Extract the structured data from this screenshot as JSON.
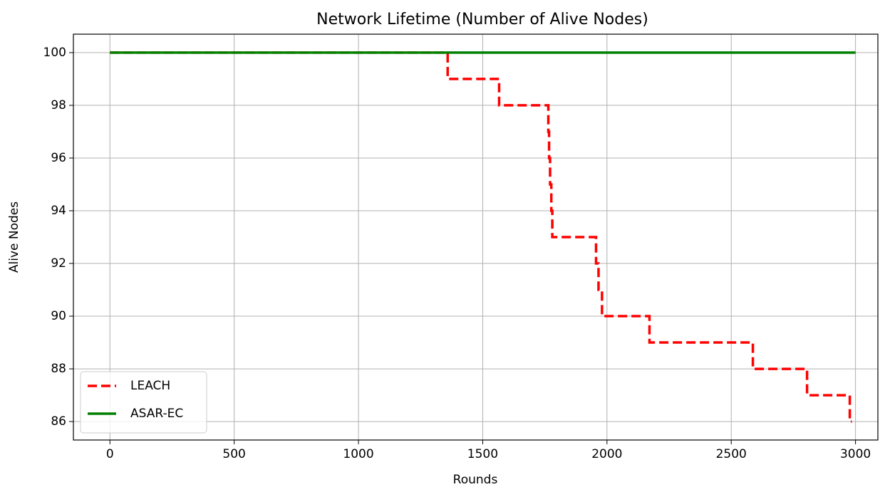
{
  "chart_data": {
    "type": "line",
    "drawstyle": "steps-post",
    "title": "Network Lifetime (Number of Alive Nodes)",
    "xlabel": "Rounds",
    "ylabel": "Alive Nodes",
    "xlim": [
      -147,
      3090
    ],
    "ylim": [
      85.3,
      100.7
    ],
    "xticks": [
      0,
      500,
      1000,
      1500,
      2000,
      2500,
      3000
    ],
    "yticks": [
      86,
      88,
      90,
      92,
      94,
      96,
      98,
      100
    ],
    "grid": true,
    "legend": "lower left",
    "series": [
      {
        "name": "LEACH",
        "color": "#ff0000",
        "dash": true,
        "x": [
          0,
          1359,
          1566,
          1764,
          1767,
          1771,
          1776,
          1780,
          1956,
          1966,
          1980,
          2171,
          2587,
          2805,
          2977,
          2985
        ],
        "values": [
          100,
          99,
          98,
          97,
          96,
          95,
          94,
          93,
          92,
          91,
          90,
          89,
          88,
          87,
          86,
          86
        ]
      },
      {
        "name": "ASAR-EC",
        "color": "#008000",
        "dash": false,
        "x": [
          0,
          3000
        ],
        "values": [
          100,
          100
        ]
      }
    ]
  }
}
